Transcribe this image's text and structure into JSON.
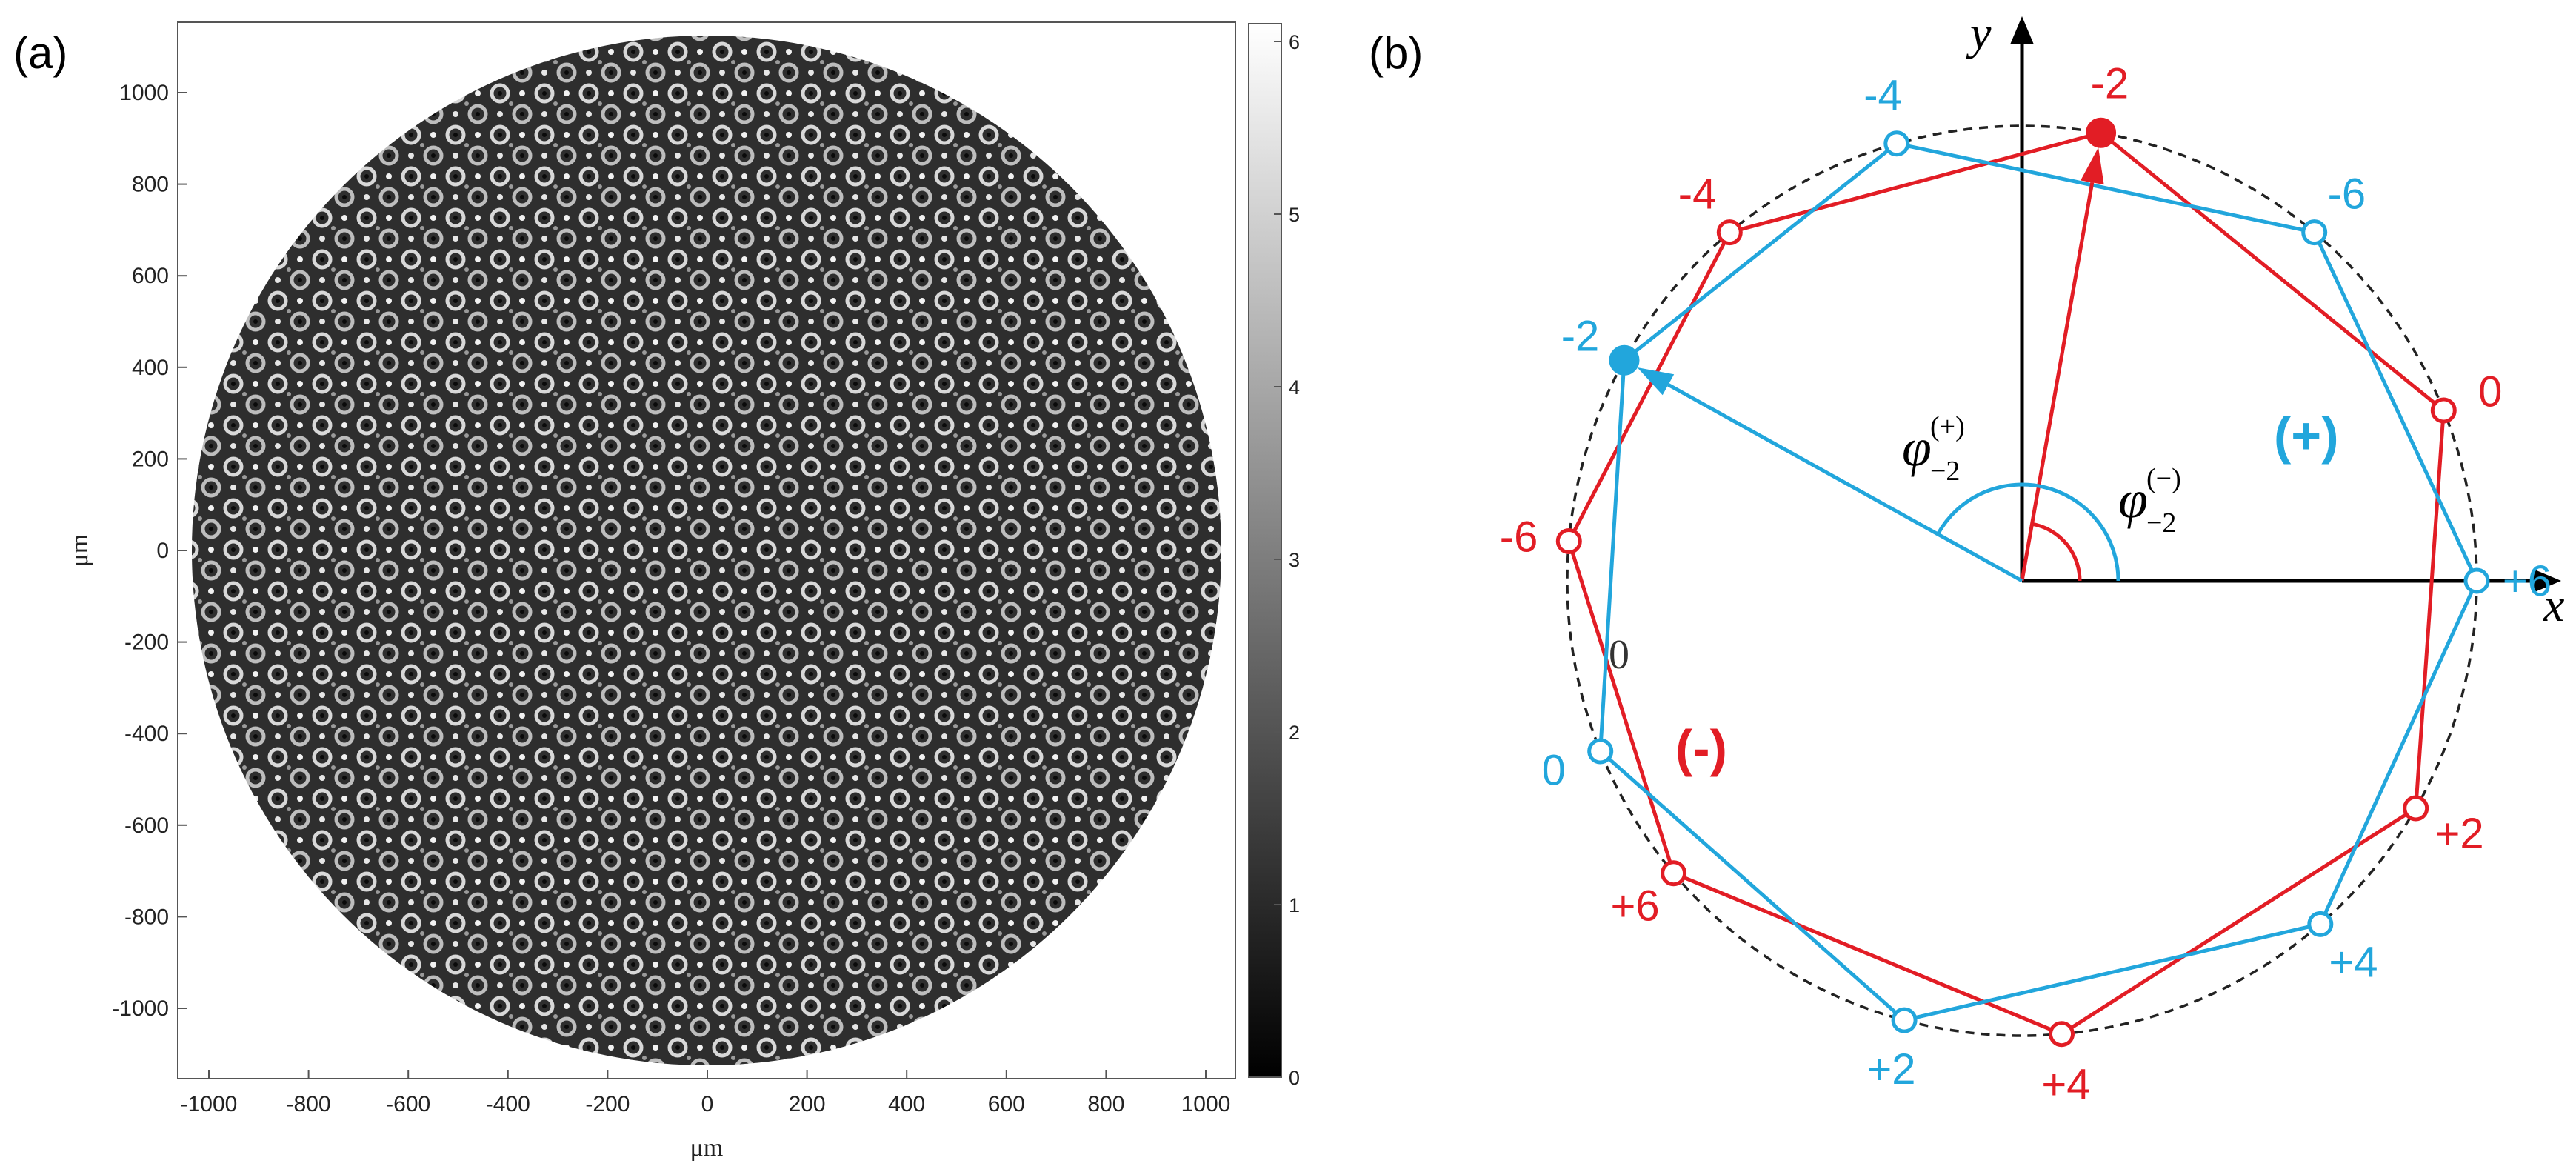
{
  "panel_a": {
    "label": "(a)",
    "xlabel": "μm",
    "ylabel": "μm",
    "x_ticks": [
      "-1000",
      "-800",
      "-600",
      "-400",
      "-200",
      "0",
      "200",
      "400",
      "600",
      "800",
      "1000"
    ],
    "y_ticks": [
      "1000",
      "800",
      "600",
      "400",
      "200",
      "0",
      "-200",
      "-400",
      "-600",
      "-800",
      "-1000"
    ],
    "colorbar_ticks": [
      "6",
      "5",
      "4",
      "3",
      "2",
      "1",
      "0"
    ]
  },
  "panel_b": {
    "label": "(b)",
    "x_axis": "x",
    "y_axis": "y",
    "region_plus": "(+)",
    "region_minus": "(-)",
    "inner_zero": "0",
    "phi_plus": {
      "symbol": "φ",
      "sub": "−2",
      "sup": "(+)"
    },
    "phi_minus": {
      "symbol": "φ",
      "sub": "−2",
      "sup": "(−)"
    },
    "red_points": [
      {
        "label": "-2",
        "angle": 80,
        "filled": true
      },
      {
        "label": "-4",
        "angle": 130,
        "filled": false
      },
      {
        "label": "-6",
        "angle": 175,
        "filled": false
      },
      {
        "label": "+6",
        "angle": 220,
        "filled": false
      },
      {
        "label": "+4",
        "angle": 275,
        "filled": false
      },
      {
        "label": "+2",
        "angle": 330,
        "filled": false
      },
      {
        "label": "0",
        "angle": 22,
        "filled": false
      }
    ],
    "blue_points": [
      {
        "label": "-2",
        "angle": 151,
        "filled": true
      },
      {
        "label": "-4",
        "angle": 106,
        "filled": false
      },
      {
        "label": "-6",
        "angle": 50,
        "filled": false
      },
      {
        "label": "+6",
        "angle": 0,
        "filled": false
      },
      {
        "label": "+4",
        "angle": 311,
        "filled": false
      },
      {
        "label": "+2",
        "angle": 255,
        "filled": false
      },
      {
        "label": "0",
        "angle": 202,
        "filled": false
      }
    ],
    "colors": {
      "red": "#e21d25",
      "blue": "#22a6dc",
      "circle": "#222222"
    }
  }
}
